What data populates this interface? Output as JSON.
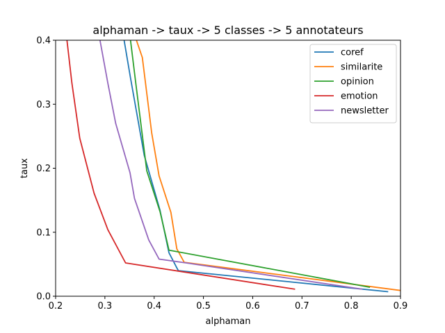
{
  "chart_data": {
    "type": "line",
    "title": "alphaman -> taux -> 5 classes -> 5 annotateurs",
    "xlabel": "alphaman",
    "ylabel": "taux",
    "xlim": [
      0.2,
      0.9
    ],
    "ylim": [
      0.0,
      0.4
    ],
    "xticks": [
      "0.2",
      "0.3",
      "0.4",
      "0.5",
      "0.6",
      "0.7",
      "0.8",
      "0.9"
    ],
    "yticks": [
      "0.0",
      "0.1",
      "0.2",
      "0.3",
      "0.4"
    ],
    "grid": false,
    "legend_position": "top-right",
    "series": [
      {
        "name": "coref",
        "color": "#1f77b4",
        "points": [
          [
            0.339,
            0.4
          ],
          [
            0.352,
            0.341
          ],
          [
            0.364,
            0.289
          ],
          [
            0.38,
            0.22
          ],
          [
            0.412,
            0.134
          ],
          [
            0.43,
            0.068
          ],
          [
            0.449,
            0.04
          ],
          [
            0.875,
            0.007
          ]
        ]
      },
      {
        "name": "similarite",
        "color": "#ff7f0e",
        "points": [
          [
            0.364,
            0.4
          ],
          [
            0.376,
            0.373
          ],
          [
            0.395,
            0.255
          ],
          [
            0.41,
            0.188
          ],
          [
            0.434,
            0.131
          ],
          [
            0.446,
            0.074
          ],
          [
            0.461,
            0.053
          ],
          [
            0.9,
            0.009
          ]
        ]
      },
      {
        "name": "opinion",
        "color": "#2ca02c",
        "points": [
          [
            0.352,
            0.4
          ],
          [
            0.363,
            0.331
          ],
          [
            0.385,
            0.196
          ],
          [
            0.412,
            0.132
          ],
          [
            0.43,
            0.072
          ],
          [
            0.838,
            0.014
          ]
        ]
      },
      {
        "name": "emotion",
        "color": "#d62728",
        "points": [
          [
            0.223,
            0.4
          ],
          [
            0.233,
            0.333
          ],
          [
            0.249,
            0.247
          ],
          [
            0.278,
            0.161
          ],
          [
            0.306,
            0.104
          ],
          [
            0.342,
            0.052
          ],
          [
            0.686,
            0.011
          ]
        ]
      },
      {
        "name": "newsletter",
        "color": "#9467bd",
        "points": [
          [
            0.29,
            0.4
          ],
          [
            0.306,
            0.333
          ],
          [
            0.322,
            0.27
          ],
          [
            0.351,
            0.193
          ],
          [
            0.36,
            0.153
          ],
          [
            0.389,
            0.088
          ],
          [
            0.41,
            0.058
          ],
          [
            0.465,
            0.052
          ],
          [
            0.823,
            0.011
          ]
        ]
      }
    ]
  }
}
